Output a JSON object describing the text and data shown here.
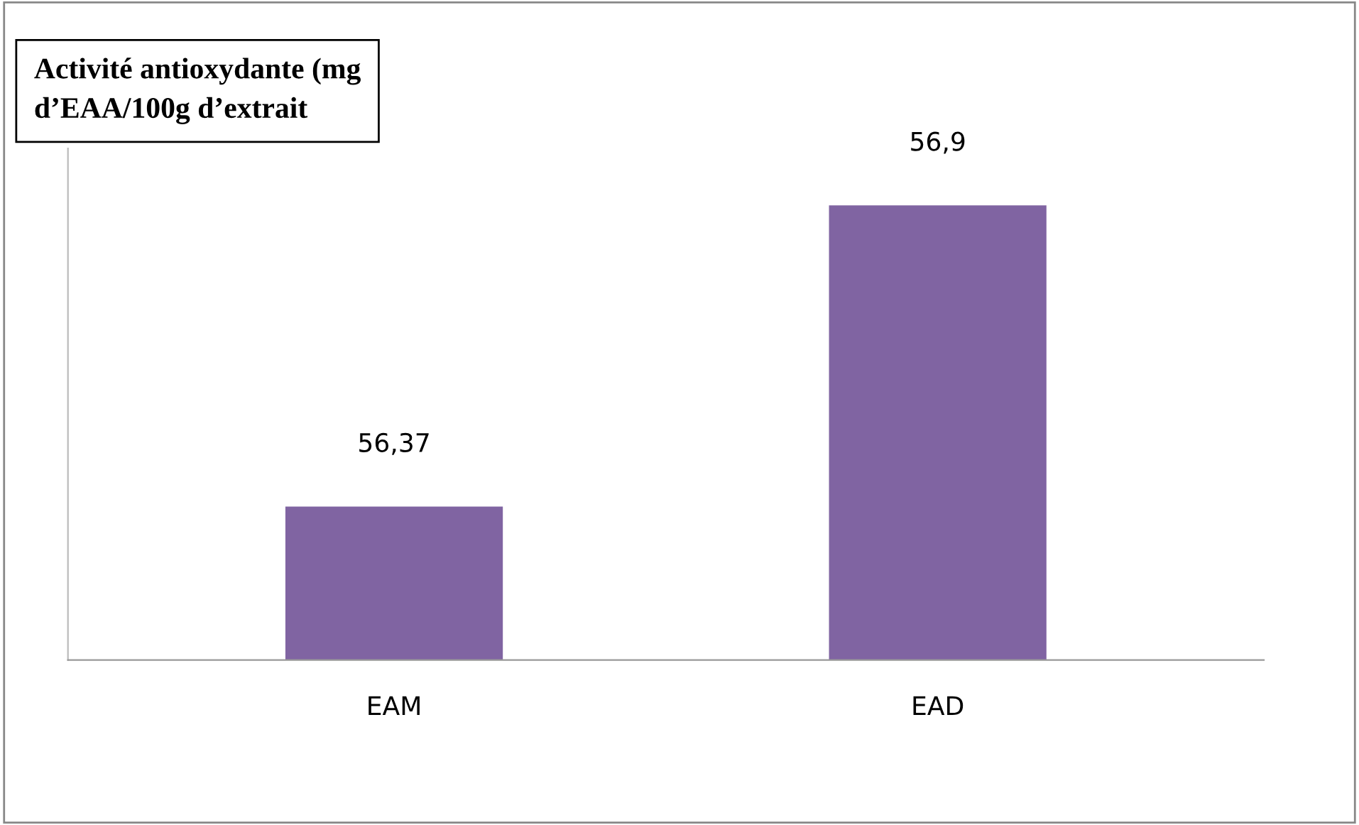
{
  "chart_data": {
    "type": "bar",
    "title": "Activité antioxydante (mg\nd’EAA/100g d’extrait",
    "categories": [
      "EAM",
      "EAD"
    ],
    "values": [
      56.37,
      56.9
    ],
    "value_labels": [
      "56,37",
      "56,9"
    ],
    "color": "#8064a2",
    "ylim": [
      56.1,
      57.0
    ],
    "tick_labels": "x",
    "grid": false
  }
}
